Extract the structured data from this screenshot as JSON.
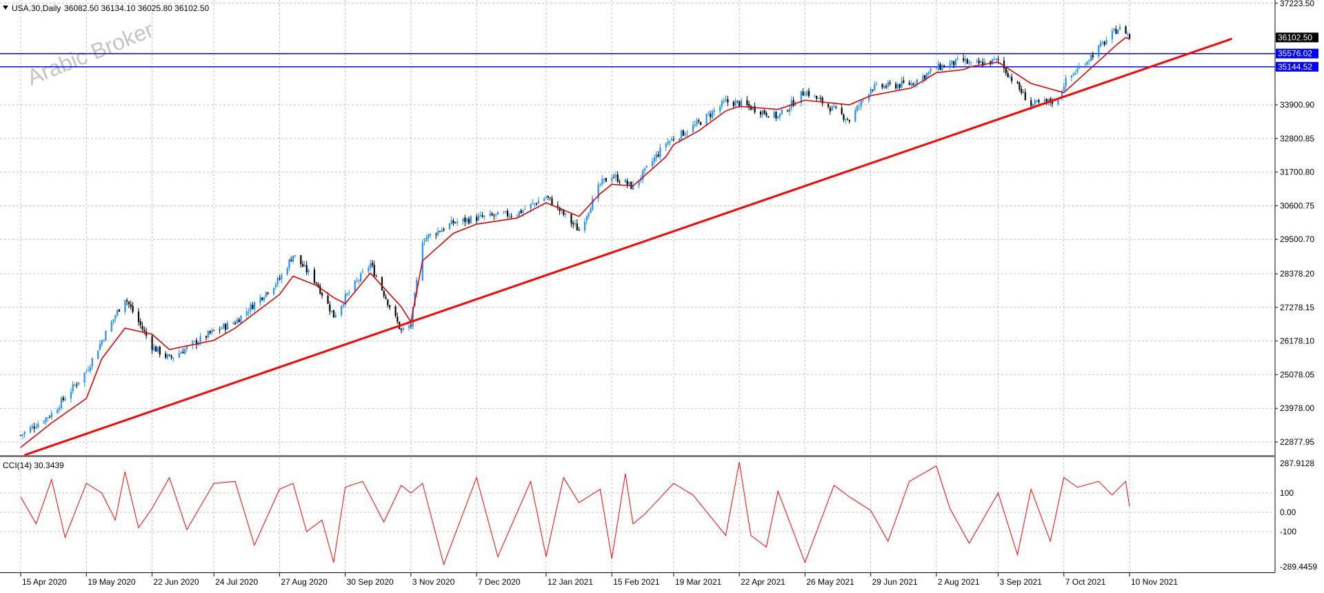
{
  "header": {
    "symbol": "USA.30,Daily",
    "ohlc": "36082.50 36134.10 36025.80 36102.50"
  },
  "watermark": {
    "text": "Arabic Broker"
  },
  "indicator": {
    "label": "CCI(14) 30.3439"
  },
  "colors": {
    "bull": "#1e90ff",
    "bear": "#000000",
    "ma": "#e00000",
    "trendline": "#ff0000",
    "hline": "#0000ff",
    "cci": "#ff0000",
    "grid": "#c0c0c0"
  },
  "icons": {
    "symbol_menu": "triangle-down-icon"
  },
  "chart_data": [
    {
      "type": "candlestick",
      "title": "USA.30,Daily",
      "y_ticks": [
        "37223.50",
        "33900.90",
        "32800.85",
        "31700.80",
        "30600.75",
        "29500.70",
        "28378.20",
        "27278.15",
        "26178.10",
        "25078.05",
        "23978.00",
        "22877.95"
      ],
      "ylim": [
        22500,
        37223.5
      ],
      "x_ticks": [
        "15 Apr 2020",
        "19 May 2020",
        "22 Jun 2020",
        "24 Jul 2020",
        "27 Aug 2020",
        "30 Sep 2020",
        "3 Nov 2020",
        "7 Dec 2020",
        "12 Jan 2021",
        "15 Feb 2021",
        "19 Mar 2021",
        "22 Apr 2021",
        "26 May 2021",
        "29 Jun 2021",
        "2 Aug 2021",
        "3 Sep 2021",
        "7 Oct 2021",
        "10 Nov 2021"
      ],
      "last_ohlc": {
        "open": 36082.5,
        "high": 36134.1,
        "low": 36025.8,
        "close": 36102.5
      },
      "price_labels": [
        {
          "text": "36102.50",
          "value": 36102.5,
          "color": "#000000"
        },
        {
          "text": "35576.02",
          "value": 35576.02,
          "color": "#0000ff"
        },
        {
          "text": "35144.52",
          "value": 35144.52,
          "color": "#0000ff"
        }
      ],
      "horizontal_lines": [
        35576.02,
        35144.52
      ],
      "trendline": {
        "from": [
          "17 Apr 2020",
          22450
        ],
        "to": [
          "2 Jan 2022",
          36060
        ]
      },
      "series": [
        {
          "name": "Close",
          "x": [
            "15 Apr 2020",
            "1 May 2020",
            "19 May 2020",
            "27 May 2020",
            "8 Jun 2020",
            "22 Jun 2020",
            "1 Jul 2020",
            "24 Jul 2020",
            "4 Aug 2020",
            "27 Aug 2020",
            "3 Sep 2020",
            "15 Sep 2020",
            "24 Sep 2020",
            "30 Sep 2020",
            "13 Oct 2020",
            "29 Oct 2020",
            "3 Nov 2020",
            "9 Nov 2020",
            "25 Nov 2020",
            "7 Dec 2020",
            "28 Dec 2020",
            "12 Jan 2021",
            "29 Jan 2021",
            "9 Feb 2021",
            "15 Feb 2021",
            "26 Feb 2021",
            "15 Mar 2021",
            "19 Mar 2021",
            "1 Apr 2021",
            "15 Apr 2021",
            "22 Apr 2021",
            "12 May 2021",
            "26 May 2021",
            "18 Jun 2021",
            "29 Jun 2021",
            "20 Jul 2021",
            "2 Aug 2021",
            "16 Aug 2021",
            "20 Aug 2021",
            "3 Sep 2021",
            "20 Sep 2021",
            "4 Oct 2021",
            "7 Oct 2021",
            "21 Oct 2021",
            "4 Nov 2021",
            "8 Nov 2021",
            "10 Nov 2021"
          ],
          "values": [
            23100,
            23800,
            25200,
            26200,
            27600,
            26000,
            25600,
            26500,
            26800,
            28200,
            29000,
            28100,
            27000,
            27600,
            28700,
            26500,
            26700,
            29500,
            30050,
            30200,
            30350,
            30900,
            29800,
            31300,
            31600,
            31200,
            32650,
            32800,
            33300,
            34000,
            33950,
            33500,
            34350,
            33400,
            34450,
            34600,
            35100,
            35350,
            35200,
            35350,
            33900,
            34050,
            34600,
            35500,
            36400,
            36300,
            36102.5
          ]
        },
        {
          "name": "Moving Average",
          "x": [
            "15 Apr 2020",
            "1 May 2020",
            "19 May 2020",
            "27 May 2020",
            "8 Jun 2020",
            "22 Jun 2020",
            "1 Jul 2020",
            "24 Jul 2020",
            "4 Aug 2020",
            "27 Aug 2020",
            "3 Sep 2020",
            "15 Sep 2020",
            "24 Sep 2020",
            "30 Sep 2020",
            "13 Oct 2020",
            "29 Oct 2020",
            "3 Nov 2020",
            "9 Nov 2020",
            "25 Nov 2020",
            "7 Dec 2020",
            "28 Dec 2020",
            "12 Jan 2021",
            "29 Jan 2021",
            "9 Feb 2021",
            "15 Feb 2021",
            "26 Feb 2021",
            "15 Mar 2021",
            "19 Mar 2021",
            "1 Apr 2021",
            "15 Apr 2021",
            "22 Apr 2021",
            "12 May 2021",
            "26 May 2021",
            "18 Jun 2021",
            "29 Jun 2021",
            "20 Jul 2021",
            "2 Aug 2021",
            "16 Aug 2021",
            "20 Aug 2021",
            "3 Sep 2021",
            "20 Sep 2021",
            "4 Oct 2021",
            "7 Oct 2021",
            "21 Oct 2021",
            "4 Nov 2021",
            "8 Nov 2021",
            "10 Nov 2021"
          ],
          "values": [
            22700,
            23500,
            24300,
            25600,
            26600,
            26400,
            25900,
            26200,
            26600,
            27700,
            28300,
            28000,
            27600,
            27400,
            28400,
            27300,
            26800,
            28800,
            29700,
            30000,
            30200,
            30700,
            30250,
            31000,
            31300,
            31250,
            32200,
            32600,
            33050,
            33700,
            33850,
            33750,
            34050,
            33900,
            34200,
            34450,
            34950,
            35050,
            35150,
            35300,
            34600,
            34350,
            34300,
            35100,
            35900,
            36100,
            36050
          ]
        }
      ]
    },
    {
      "type": "line",
      "title": "CCI(14) 30.3439",
      "y_ticks": [
        "287.9128",
        "100",
        "0.00",
        "-100",
        "-289.4459"
      ],
      "ylim": [
        -289.4459,
        287.9128
      ],
      "last_value": 30.3439,
      "x": [
        "15 Apr 2020",
        "23 Apr 2020",
        "1 May 2020",
        "8 May 2020",
        "19 May 2020",
        "27 May 2020",
        "3 Jun 2020",
        "8 Jun 2020",
        "15 Jun 2020",
        "22 Jun 2020",
        "1 Jul 2020",
        "10 Jul 2020",
        "24 Jul 2020",
        "4 Aug 2020",
        "14 Aug 2020",
        "27 Aug 2020",
        "3 Sep 2020",
        "10 Sep 2020",
        "18 Sep 2020",
        "24 Sep 2020",
        "30 Sep 2020",
        "9 Oct 2020",
        "20 Oct 2020",
        "29 Oct 2020",
        "3 Nov 2020",
        "9 Nov 2020",
        "20 Nov 2020",
        "7 Dec 2020",
        "18 Dec 2020",
        "4 Jan 2021",
        "12 Jan 2021",
        "21 Jan 2021",
        "29 Jan 2021",
        "9 Feb 2021",
        "15 Feb 2021",
        "22 Feb 2021",
        "26 Feb 2021",
        "4 Mar 2021",
        "19 Mar 2021",
        "29 Mar 2021",
        "15 Apr 2021",
        "22 Apr 2021",
        "28 Apr 2021",
        "6 May 2021",
        "12 May 2021",
        "26 May 2021",
        "10 Jun 2021",
        "18 Jun 2021",
        "29 Jun 2021",
        "8 Jul 2021",
        "19 Jul 2021",
        "2 Aug 2021",
        "9 Aug 2021",
        "19 Aug 2021",
        "3 Sep 2021",
        "13 Sep 2021",
        "20 Sep 2021",
        "30 Sep 2021",
        "7 Oct 2021",
        "14 Oct 2021",
        "25 Oct 2021",
        "1 Nov 2021",
        "8 Nov 2021",
        "10 Nov 2021"
      ],
      "values": [
        80,
        -60,
        170,
        -130,
        150,
        100,
        -40,
        210,
        -80,
        20,
        180,
        -90,
        150,
        160,
        -170,
        120,
        150,
        -100,
        -40,
        -260,
        130,
        160,
        -50,
        140,
        100,
        150,
        -270,
        180,
        -230,
        160,
        -230,
        180,
        50,
        120,
        -240,
        200,
        -60,
        -10,
        150,
        90,
        -120,
        260,
        -120,
        -180,
        110,
        -260,
        140,
        80,
        10,
        -150,
        160,
        240,
        20,
        -160,
        100,
        -220,
        120,
        -150,
        180,
        130,
        160,
        90,
        160,
        30.34
      ]
    }
  ]
}
